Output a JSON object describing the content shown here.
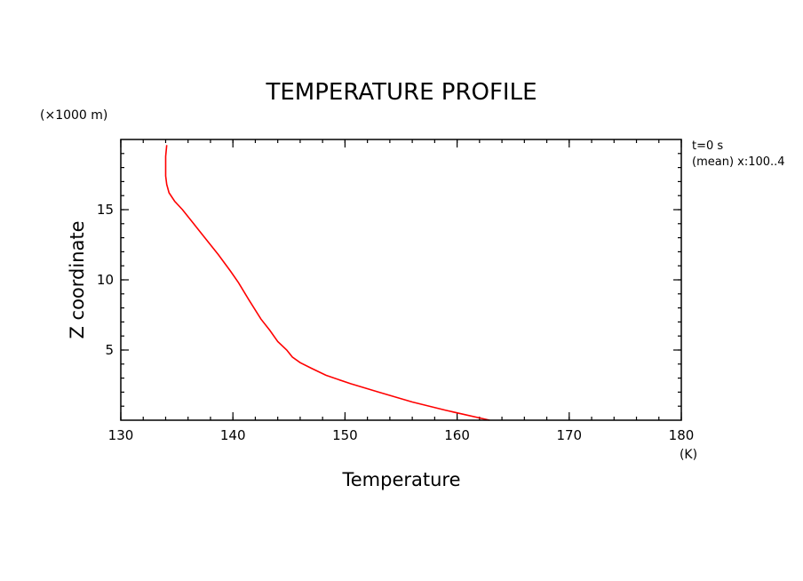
{
  "chart_data": {
    "type": "line",
    "title": "TEMPERATURE PROFILE",
    "xlabel": "Temperature",
    "ylabel": "Z coordinate",
    "x_unit": "(K)",
    "y_unit": "(×1000 m)",
    "xlim": [
      130,
      180
    ],
    "ylim": [
      0,
      20
    ],
    "x_ticks": [
      130,
      140,
      150,
      160,
      170,
      180
    ],
    "y_ticks": [
      5,
      10,
      15
    ],
    "grid": false,
    "annotations": [
      "t=0 s",
      "(mean) x:100..4"
    ],
    "series": [
      {
        "color": "#ff0000",
        "x": [
          162.9,
          159.0,
          156.0,
          153.0,
          150.5,
          148.3,
          147.0,
          146.0,
          145.3,
          144.8,
          144.0,
          143.3,
          142.5,
          141.4,
          140.5,
          139.8,
          138.7,
          137.5,
          136.5,
          135.5,
          134.8,
          134.3,
          134.1,
          134.0,
          134.0,
          134.0,
          134.1
        ],
        "y": [
          0.0,
          0.7,
          1.3,
          2.0,
          2.6,
          3.2,
          3.7,
          4.1,
          4.5,
          5.0,
          5.6,
          6.4,
          7.2,
          8.6,
          9.8,
          10.6,
          11.8,
          13.0,
          14.0,
          15.0,
          15.6,
          16.2,
          16.8,
          17.4,
          18.0,
          18.8,
          19.6
        ]
      }
    ]
  }
}
